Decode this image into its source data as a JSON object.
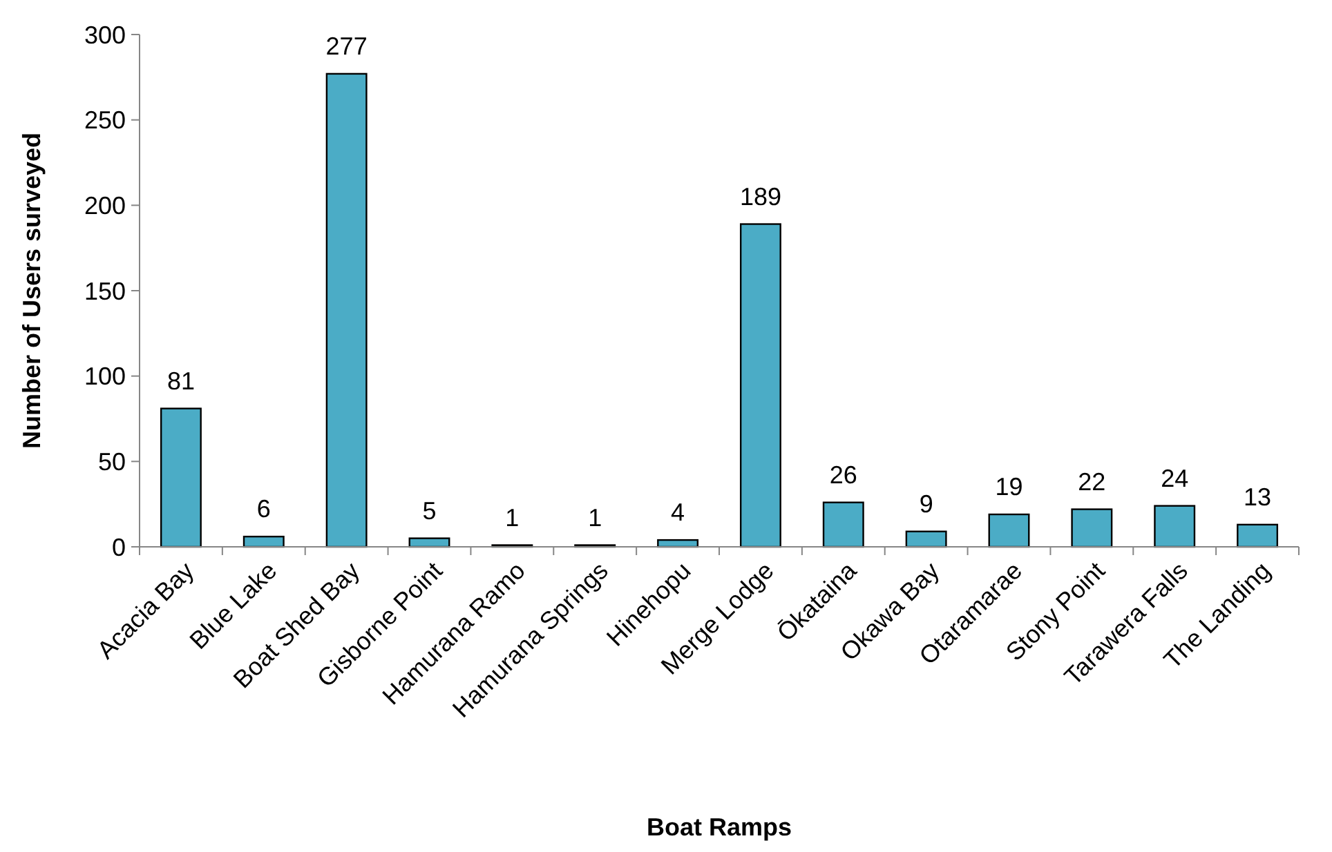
{
  "chart_data": {
    "type": "bar",
    "xlabel": "Boat Ramps",
    "ylabel": "Number of Users surveyed",
    "categories": [
      "Acacia Bay",
      "Blue Lake",
      "Boat Shed Bay",
      "Gisborne Point",
      "Hamurana Ramo",
      "Hamurana Springs",
      "Hinehopu",
      "Merge Lodge",
      "Ōkataina",
      "Okawa Bay",
      "Otaramarae",
      "Stony Point",
      "Tarawera Falls",
      "The Landing"
    ],
    "values": [
      81,
      6,
      277,
      5,
      1,
      1,
      4,
      189,
      26,
      9,
      19,
      22,
      24,
      13
    ],
    "color": "#4bacc6",
    "ylim": [
      0,
      300
    ],
    "yticks": [
      0,
      50,
      100,
      150,
      200,
      250,
      300
    ],
    "data_labels": true,
    "grid": false
  }
}
